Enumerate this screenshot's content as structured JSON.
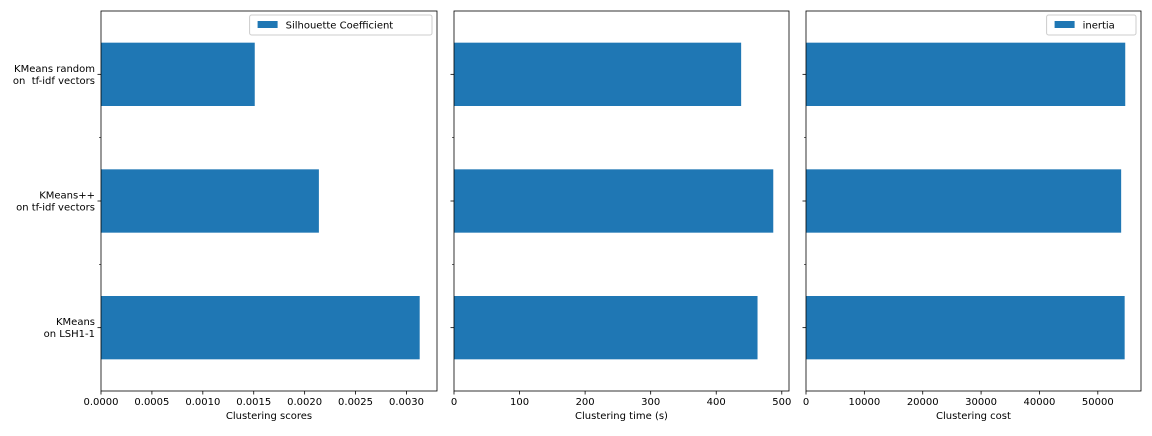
{
  "chart_data": [
    {
      "type": "bar",
      "orientation": "horizontal",
      "categories": [
        "KMeans random\non  tf-idf vectors",
        "KMeans++\non tf-idf vectors",
        "KMeans\non LSH1-1"
      ],
      "series": [
        {
          "name": "Silhouette Coefficient",
          "values": [
            0.00151,
            0.00214,
            0.00313
          ]
        }
      ],
      "xlabel": "Clustering scores",
      "xlim": [
        0,
        0.0033
      ],
      "xticks": [
        "0.0000",
        "0.0005",
        "0.0010",
        "0.0015",
        "0.0020",
        "0.0025",
        "0.0030"
      ],
      "legend": "top-right",
      "color": "#1f77b4",
      "grid": false
    },
    {
      "type": "bar",
      "orientation": "horizontal",
      "categories": [
        "KMeans random\non  tf-idf vectors",
        "KMeans++\non tf-idf vectors",
        "KMeans\non LSH1-1"
      ],
      "series": [
        {
          "values": [
            438,
            487,
            463
          ]
        }
      ],
      "xlabel": "Clustering time (s)",
      "xlim": [
        0,
        511
      ],
      "xticks": [
        "0",
        "100",
        "200",
        "300",
        "400",
        "500"
      ],
      "color": "#1f77b4",
      "grid": false
    },
    {
      "type": "bar",
      "orientation": "horizontal",
      "categories": [
        "KMeans random\non  tf-idf vectors",
        "KMeans++\non tf-idf vectors",
        "KMeans\non LSH1-1"
      ],
      "series": [
        {
          "name": "inertia",
          "values": [
            54700,
            54000,
            54600
          ]
        }
      ],
      "xlabel": "Clustering cost",
      "xlim": [
        0,
        57400
      ],
      "xticks": [
        "0",
        "10000",
        "20000",
        "30000",
        "40000",
        "50000"
      ],
      "legend": "top-right",
      "color": "#1f77b4",
      "grid": false
    }
  ]
}
